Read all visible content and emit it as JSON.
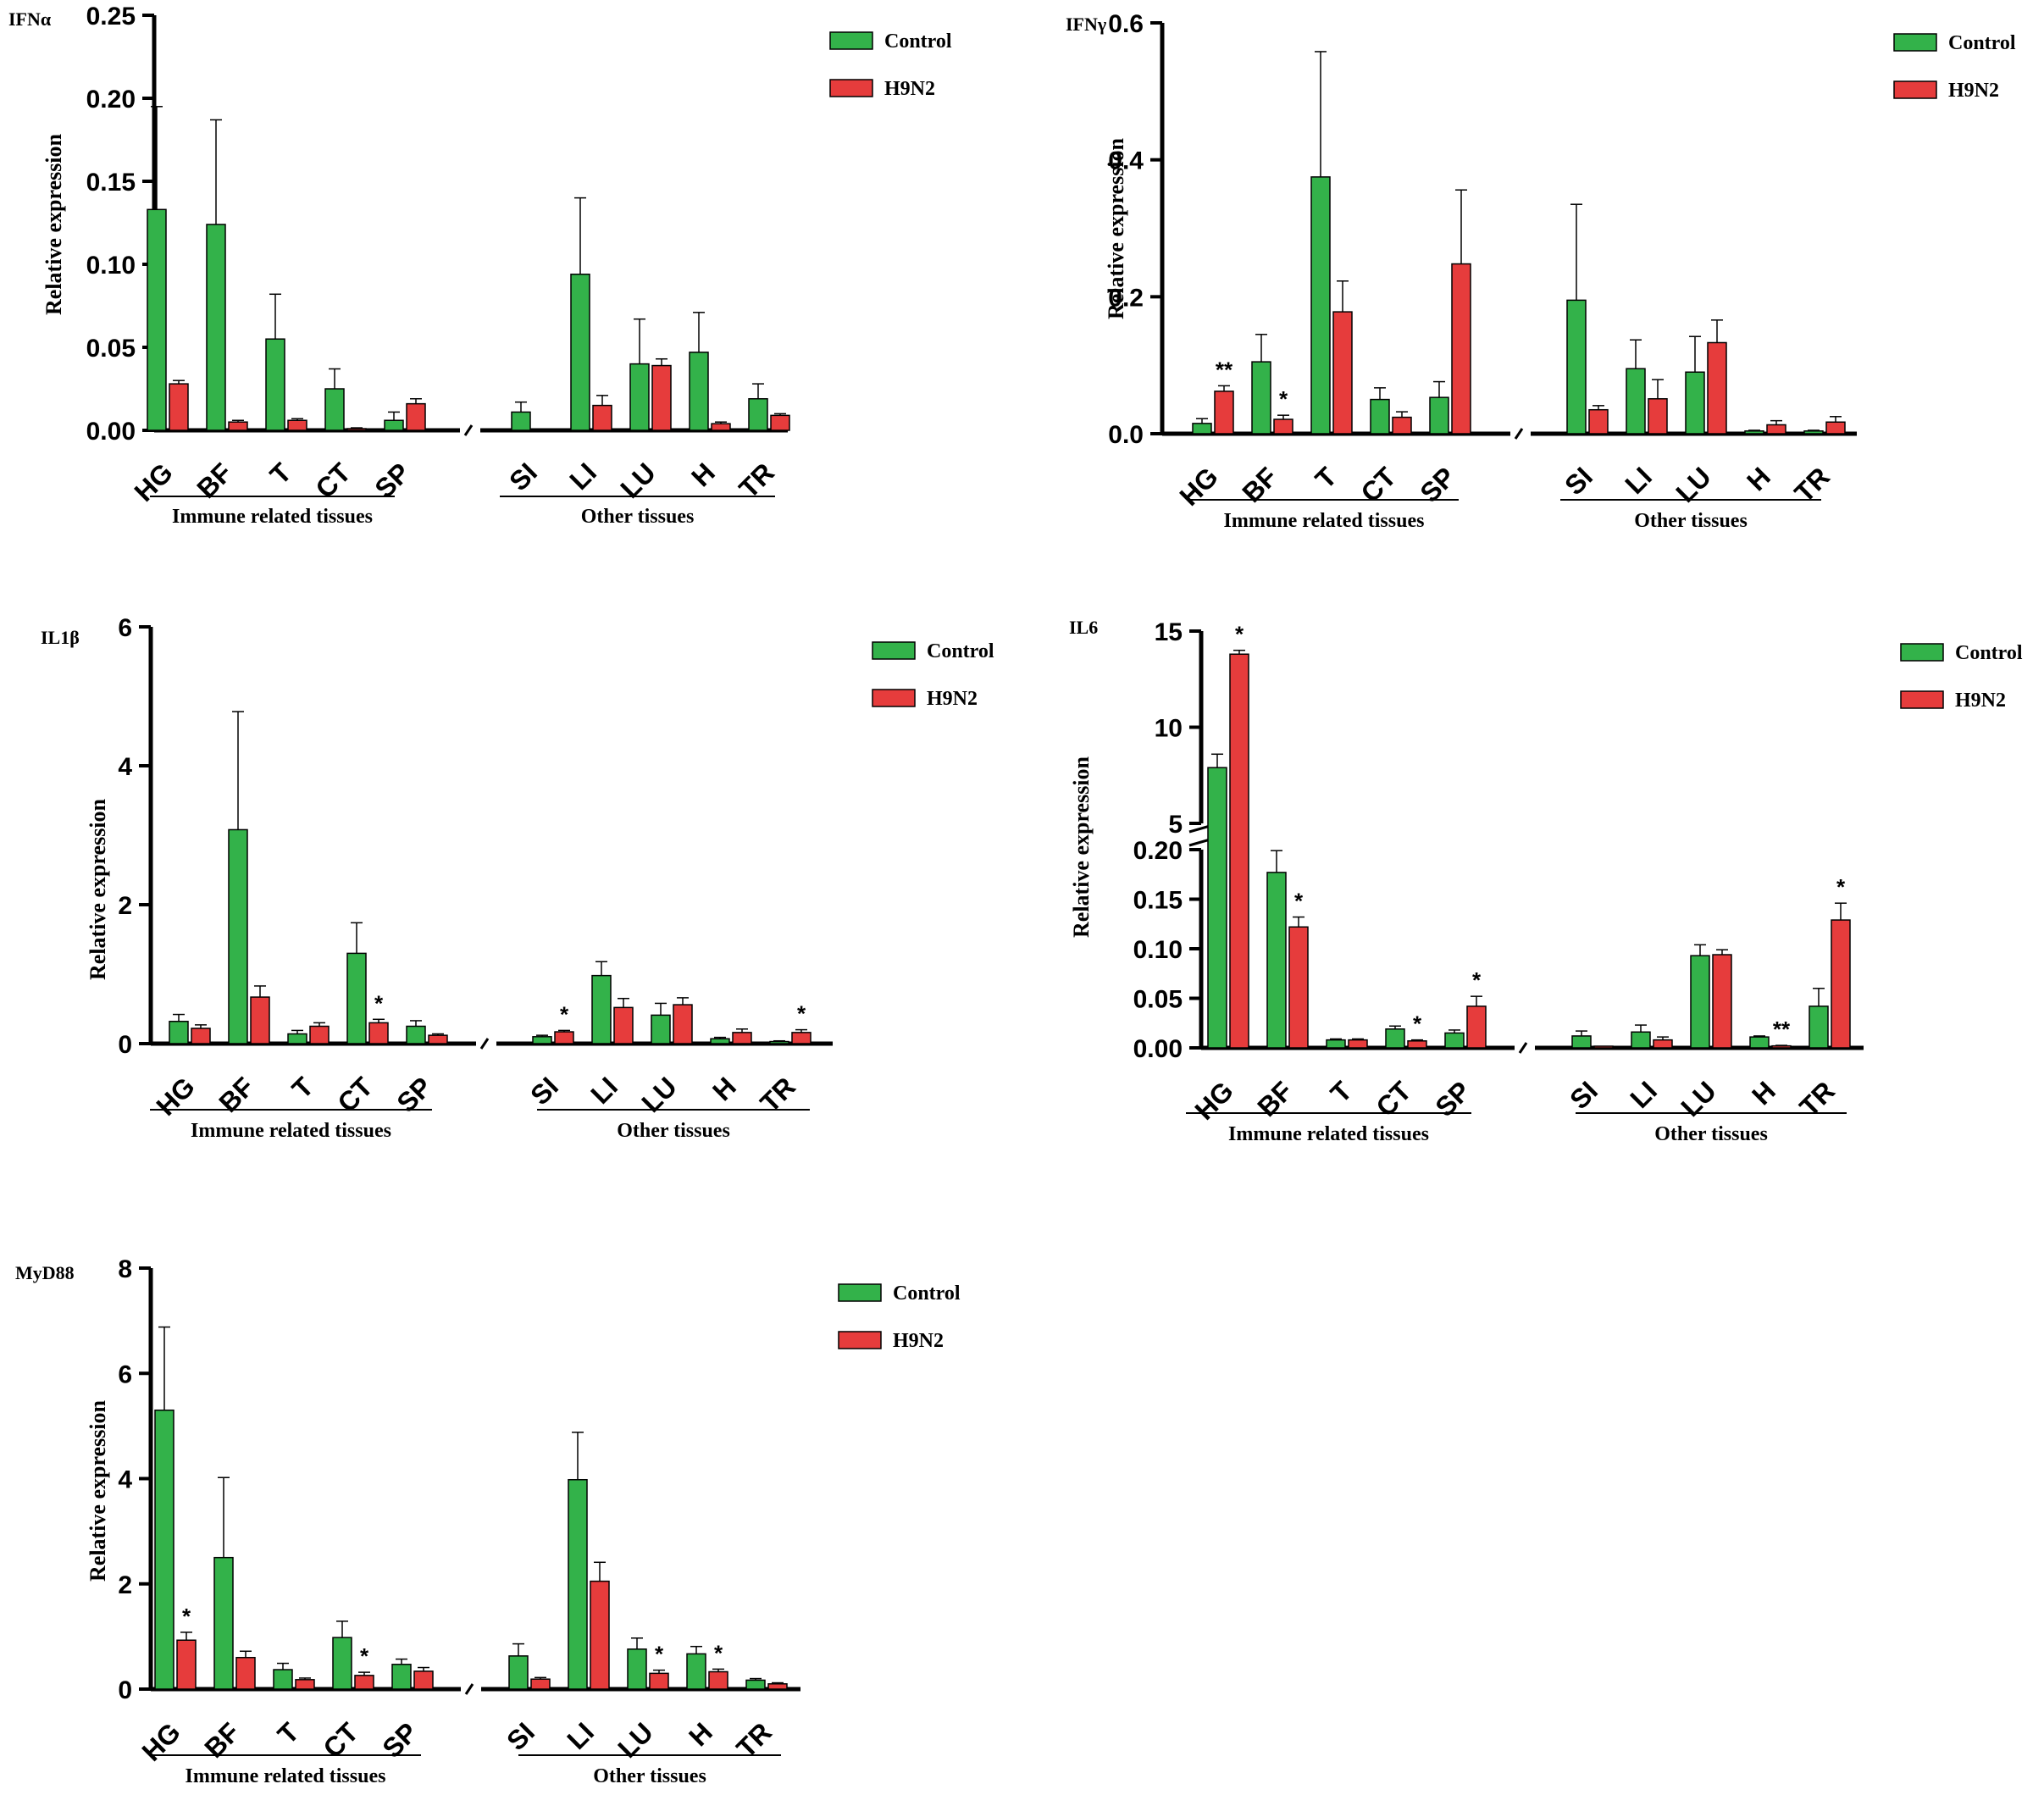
{
  "colors": {
    "control": "#33b24a",
    "h9n2": "#e63c3c",
    "axis": "#000000"
  },
  "chart_data": [
    {
      "type": "bar",
      "title": "IFNα",
      "ylabel": "Relative expression",
      "ylim": [
        0,
        0.25
      ],
      "yticks": [
        "0.00",
        "0.05",
        "0.10",
        "0.15",
        "0.20",
        "0.25"
      ],
      "ytick_values": [
        0,
        0.05,
        0.1,
        0.15,
        0.2,
        0.25
      ],
      "categories": [
        "HG",
        "BF",
        "T",
        "CT",
        "SP",
        "SI",
        "LI",
        "LU",
        "H",
        "TR"
      ],
      "groups": [
        {
          "label": "Immune related tissues",
          "from": 0,
          "to": 4
        },
        {
          "label": "Other tissues",
          "from": 5,
          "to": 9
        }
      ],
      "legend": [
        "Control",
        "H9N2"
      ],
      "series": [
        {
          "name": "Control",
          "values": [
            0.133,
            0.124,
            0.055,
            0.025,
            0.006,
            0.011,
            0.094,
            0.04,
            0.047,
            0.019
          ],
          "errors": [
            0.062,
            0.063,
            0.027,
            0.012,
            0.005,
            0.006,
            0.046,
            0.027,
            0.024,
            0.009
          ]
        },
        {
          "name": "H9N2",
          "values": [
            0.028,
            0.005,
            0.006,
            0.001,
            0.016,
            0.0,
            0.015,
            0.039,
            0.004,
            0.009
          ],
          "errors": [
            0.002,
            0.001,
            0.001,
            0.0005,
            0.003,
            0.0,
            0.006,
            0.004,
            0.001,
            0.001
          ]
        }
      ],
      "annotations": []
    },
    {
      "type": "bar",
      "title": "IFNγ",
      "ylabel": "Relative expression",
      "ylim": [
        0,
        0.6
      ],
      "yticks": [
        "0.0",
        "0.2",
        "0.4",
        "0.6"
      ],
      "ytick_values": [
        0,
        0.2,
        0.4,
        0.6
      ],
      "categories": [
        "HG",
        "BF",
        "T",
        "CT",
        "SP",
        "SI",
        "LI",
        "LU",
        "H",
        "TR"
      ],
      "groups": [
        {
          "label": "Immune related tissues",
          "from": 0,
          "to": 4
        },
        {
          "label": "Other tissues",
          "from": 5,
          "to": 9
        }
      ],
      "legend": [
        "Control",
        "H9N2"
      ],
      "series": [
        {
          "name": "Control",
          "values": [
            0.015,
            0.105,
            0.375,
            0.05,
            0.053,
            0.195,
            0.095,
            0.09,
            0.004,
            0.004
          ],
          "errors": [
            0.007,
            0.04,
            0.183,
            0.017,
            0.023,
            0.14,
            0.042,
            0.052,
            0.001,
            0.001
          ]
        },
        {
          "name": "H9N2",
          "values": [
            0.062,
            0.021,
            0.178,
            0.024,
            0.248,
            0.035,
            0.051,
            0.133,
            0.013,
            0.017
          ],
          "errors": [
            0.008,
            0.006,
            0.045,
            0.008,
            0.108,
            0.006,
            0.028,
            0.033,
            0.006,
            0.008
          ]
        }
      ],
      "annotations": [
        {
          "category": 0,
          "series": 1,
          "text": "**"
        },
        {
          "category": 1,
          "series": 1,
          "text": "*"
        }
      ]
    },
    {
      "type": "bar",
      "title": "IL1β",
      "ylabel": "Relative expression",
      "ylim": [
        0,
        6
      ],
      "yticks": [
        "0",
        "2",
        "4",
        "6"
      ],
      "ytick_values": [
        0,
        2,
        4,
        6
      ],
      "categories": [
        "HG",
        "BF",
        "T",
        "CT",
        "SP",
        "SI",
        "LI",
        "LU",
        "H",
        "TR"
      ],
      "groups": [
        {
          "label": "Immune related tissues",
          "from": 0,
          "to": 4
        },
        {
          "label": "Other tissues",
          "from": 5,
          "to": 9
        }
      ],
      "legend": [
        "Control",
        "H9N2"
      ],
      "series": [
        {
          "name": "Control",
          "values": [
            0.32,
            3.08,
            0.14,
            1.3,
            0.25,
            0.1,
            0.98,
            0.41,
            0.07,
            0.03
          ],
          "errors": [
            0.1,
            1.7,
            0.05,
            0.44,
            0.08,
            0.02,
            0.2,
            0.17,
            0.02,
            0.01
          ]
        },
        {
          "name": "H9N2",
          "values": [
            0.22,
            0.67,
            0.25,
            0.3,
            0.12,
            0.17,
            0.52,
            0.56,
            0.16,
            0.16
          ],
          "errors": [
            0.05,
            0.16,
            0.05,
            0.05,
            0.02,
            0.02,
            0.13,
            0.1,
            0.05,
            0.04
          ]
        }
      ],
      "annotations": [
        {
          "category": 3,
          "series": 1,
          "text": "*"
        },
        {
          "category": 5,
          "series": 1,
          "text": "*"
        },
        {
          "category": 9,
          "series": 1,
          "text": "*"
        }
      ]
    },
    {
      "type": "bar",
      "title": "IL6",
      "ylabel": "Relative expression",
      "axis_break": true,
      "ylim_lower": [
        0,
        0.2
      ],
      "ylim_upper": [
        5,
        15
      ],
      "yticks_lower": [
        "0.00",
        "0.05",
        "0.10",
        "0.15",
        "0.20"
      ],
      "ytick_values_lower": [
        0,
        0.05,
        0.1,
        0.15,
        0.2
      ],
      "yticks_upper": [
        "5",
        "10",
        "15"
      ],
      "ytick_values_upper": [
        5,
        10,
        15
      ],
      "categories": [
        "HG",
        "BF",
        "T",
        "CT",
        "SP",
        "SI",
        "LI",
        "LU",
        "H",
        "TR"
      ],
      "groups": [
        {
          "label": "Immune related tissues",
          "from": 0,
          "to": 4
        },
        {
          "label": "Other tissues",
          "from": 5,
          "to": 9
        }
      ],
      "legend": [
        "Control",
        "H9N2"
      ],
      "series": [
        {
          "name": "Control",
          "values": [
            7.9,
            0.177,
            0.008,
            0.019,
            0.015,
            0.012,
            0.016,
            0.093,
            0.011,
            0.042
          ],
          "errors": [
            0.7,
            0.022,
            0.001,
            0.003,
            0.003,
            0.005,
            0.007,
            0.011,
            0.001,
            0.018
          ]
        },
        {
          "name": "H9N2",
          "values": [
            13.8,
            0.122,
            0.008,
            0.007,
            0.042,
            0.001,
            0.008,
            0.094,
            0.002,
            0.129
          ],
          "errors": [
            0.2,
            0.01,
            0.001,
            0.001,
            0.01,
            0.0,
            0.003,
            0.005,
            0.0005,
            0.017
          ]
        }
      ],
      "annotations": [
        {
          "category": 0,
          "series": 1,
          "text": "*"
        },
        {
          "category": 1,
          "series": 1,
          "text": "*"
        },
        {
          "category": 3,
          "series": 1,
          "text": "*"
        },
        {
          "category": 4,
          "series": 1,
          "text": "*"
        },
        {
          "category": 8,
          "series": 1,
          "text": "**"
        },
        {
          "category": 9,
          "series": 1,
          "text": "*"
        }
      ]
    },
    {
      "type": "bar",
      "title": "MyD88",
      "ylabel": "Relative expression",
      "ylim": [
        0,
        8
      ],
      "yticks": [
        "0",
        "2",
        "4",
        "6",
        "8"
      ],
      "ytick_values": [
        0,
        2,
        4,
        6,
        8
      ],
      "categories": [
        "HG",
        "BF",
        "T",
        "CT",
        "SP",
        "SI",
        "LI",
        "LU",
        "H",
        "TR"
      ],
      "groups": [
        {
          "label": "Immune related tissues",
          "from": 0,
          "to": 4
        },
        {
          "label": "Other tissues",
          "from": 5,
          "to": 9
        }
      ],
      "legend": [
        "Control",
        "H9N2"
      ],
      "series": [
        {
          "name": "Control",
          "values": [
            5.3,
            2.5,
            0.37,
            0.98,
            0.47,
            0.63,
            3.98,
            0.76,
            0.67,
            0.17
          ],
          "errors": [
            1.58,
            1.52,
            0.12,
            0.31,
            0.1,
            0.23,
            0.9,
            0.21,
            0.14,
            0.03
          ]
        },
        {
          "name": "H9N2",
          "values": [
            0.93,
            0.6,
            0.18,
            0.26,
            0.34,
            0.19,
            2.05,
            0.3,
            0.33,
            0.1
          ],
          "errors": [
            0.15,
            0.12,
            0.03,
            0.06,
            0.07,
            0.03,
            0.36,
            0.06,
            0.05,
            0.02
          ]
        }
      ],
      "annotations": [
        {
          "category": 0,
          "series": 1,
          "text": "*"
        },
        {
          "category": 3,
          "series": 1,
          "text": "*"
        },
        {
          "category": 7,
          "series": 1,
          "text": "*"
        },
        {
          "category": 8,
          "series": 1,
          "text": "*"
        }
      ]
    }
  ]
}
